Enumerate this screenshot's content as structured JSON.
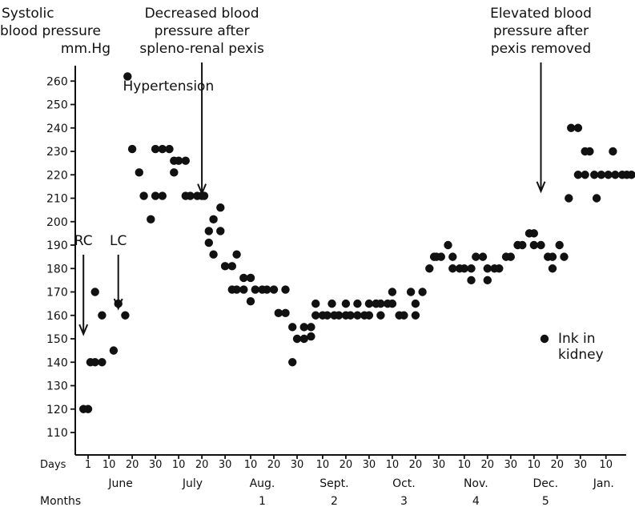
{
  "chart_data": {
    "type": "scatter",
    "ylabel_lines": [
      "Systolic",
      "blood pressure",
      "mm.Hg"
    ],
    "y_ticks": [
      110,
      120,
      130,
      140,
      150,
      160,
      170,
      180,
      190,
      200,
      210,
      220,
      230,
      240,
      250,
      260
    ],
    "ylim": [
      100,
      265
    ],
    "xlim": [
      -3,
      227
    ],
    "days_label": "Days",
    "months_label": "Months",
    "day_ticks": [
      {
        "label": "1",
        "day": 0
      },
      {
        "label": "10",
        "day": 9
      },
      {
        "label": "20",
        "day": 19
      },
      {
        "label": "30",
        "day": 29
      },
      {
        "label": "10",
        "day": 39
      },
      {
        "label": "20",
        "day": 49
      },
      {
        "label": "30",
        "day": 59
      },
      {
        "label": "10",
        "day": 70
      },
      {
        "label": "20",
        "day": 80
      },
      {
        "label": "30",
        "day": 90
      },
      {
        "label": "10",
        "day": 101
      },
      {
        "label": "20",
        "day": 111
      },
      {
        "label": "30",
        "day": 121
      },
      {
        "label": "10",
        "day": 131
      },
      {
        "label": "20",
        "day": 141
      },
      {
        "label": "30",
        "day": 151
      },
      {
        "label": "10",
        "day": 162
      },
      {
        "label": "20",
        "day": 172
      },
      {
        "label": "30",
        "day": 182
      },
      {
        "label": "10",
        "day": 192
      },
      {
        "label": "20",
        "day": 202
      },
      {
        "label": "30",
        "day": 212
      },
      {
        "label": "10",
        "day": 223
      }
    ],
    "month_names": [
      {
        "label": "June",
        "day": 14
      },
      {
        "label": "July",
        "day": 45
      },
      {
        "label": "Aug.",
        "day": 75
      },
      {
        "label": "Sept.",
        "day": 106
      },
      {
        "label": "Oct.",
        "day": 136
      },
      {
        "label": "Nov.",
        "day": 167
      },
      {
        "label": "Dec.",
        "day": 197
      },
      {
        "label": "Jan.",
        "day": 222
      }
    ],
    "month_numbers": [
      {
        "label": "1",
        "day": 75
      },
      {
        "label": "2",
        "day": 106
      },
      {
        "label": "3",
        "day": 136
      },
      {
        "label": "4",
        "day": 167
      },
      {
        "label": "5",
        "day": 197
      }
    ],
    "annotations": [
      {
        "id": "rc",
        "lines": [
          "RC"
        ],
        "day": -2,
        "value": 190,
        "arrow": true,
        "arrow_to": 152
      },
      {
        "id": "lc",
        "lines": [
          "LC"
        ],
        "day": 13,
        "value": 190,
        "arrow": true,
        "arrow_to": 163
      },
      {
        "id": "hypertension",
        "lines": [
          "Hypertension"
        ],
        "day": 15,
        "value": 256,
        "arrow": false
      },
      {
        "id": "decreased",
        "lines": [
          "Decreased blood",
          "pressure after",
          "spleno-renal pexis"
        ],
        "day": 49,
        "value": 295,
        "arrow": true,
        "arrow_to": 212
      },
      {
        "id": "elevated",
        "lines": [
          "Elevated blood",
          "pressure after",
          "pexis removed"
        ],
        "day": 195,
        "value": 295,
        "arrow": true,
        "arrow_to": 213
      }
    ],
    "legend": {
      "label_lines": [
        "Ink in",
        "kidney"
      ],
      "position": "right"
    },
    "points": [
      [
        -2,
        120
      ],
      [
        0,
        120
      ],
      [
        1,
        140
      ],
      [
        3,
        140
      ],
      [
        3,
        170
      ],
      [
        6,
        140
      ],
      [
        6,
        160
      ],
      [
        11,
        145
      ],
      [
        13,
        165
      ],
      [
        16,
        160
      ],
      [
        17,
        262
      ],
      [
        19,
        231
      ],
      [
        22,
        221
      ],
      [
        24,
        211
      ],
      [
        27,
        201
      ],
      [
        29,
        211
      ],
      [
        29,
        231
      ],
      [
        32,
        211
      ],
      [
        32,
        231
      ],
      [
        35,
        231
      ],
      [
        37,
        226
      ],
      [
        37,
        221
      ],
      [
        39,
        226
      ],
      [
        42,
        226
      ],
      [
        42,
        211
      ],
      [
        44,
        211
      ],
      [
        47,
        211
      ],
      [
        49,
        211
      ],
      [
        50,
        211
      ],
      [
        52,
        196
      ],
      [
        52,
        191
      ],
      [
        54,
        201
      ],
      [
        54,
        186
      ],
      [
        57,
        206
      ],
      [
        57,
        196
      ],
      [
        59,
        181
      ],
      [
        62,
        181
      ],
      [
        62,
        171
      ],
      [
        64,
        186
      ],
      [
        64,
        171
      ],
      [
        67,
        176
      ],
      [
        67,
        171
      ],
      [
        70,
        166
      ],
      [
        70,
        176
      ],
      [
        72,
        171
      ],
      [
        75,
        171
      ],
      [
        77,
        171
      ],
      [
        80,
        171
      ],
      [
        82,
        161
      ],
      [
        85,
        171
      ],
      [
        85,
        161
      ],
      [
        88,
        155
      ],
      [
        88,
        140
      ],
      [
        90,
        150
      ],
      [
        93,
        155
      ],
      [
        93,
        150
      ],
      [
        96,
        151
      ],
      [
        96,
        155
      ],
      [
        98,
        160
      ],
      [
        98,
        165
      ],
      [
        101,
        160
      ],
      [
        103,
        160
      ],
      [
        105,
        165
      ],
      [
        106,
        160
      ],
      [
        108,
        160
      ],
      [
        111,
        165
      ],
      [
        111,
        160
      ],
      [
        113,
        160
      ],
      [
        116,
        165
      ],
      [
        116,
        160
      ],
      [
        119,
        160
      ],
      [
        121,
        165
      ],
      [
        121,
        160
      ],
      [
        124,
        165
      ],
      [
        124,
        165
      ],
      [
        126,
        165
      ],
      [
        126,
        160
      ],
      [
        129,
        165
      ],
      [
        131,
        170
      ],
      [
        131,
        165
      ],
      [
        134,
        160
      ],
      [
        136,
        160
      ],
      [
        139,
        170
      ],
      [
        141,
        165
      ],
      [
        141,
        160
      ],
      [
        144,
        170
      ],
      [
        147,
        180
      ],
      [
        149,
        185
      ],
      [
        150,
        185
      ],
      [
        152,
        185
      ],
      [
        155,
        190
      ],
      [
        157,
        185
      ],
      [
        157,
        180
      ],
      [
        160,
        180
      ],
      [
        162,
        180
      ],
      [
        165,
        175
      ],
      [
        165,
        180
      ],
      [
        167,
        185
      ],
      [
        170,
        185
      ],
      [
        172,
        175
      ],
      [
        172,
        180
      ],
      [
        175,
        180
      ],
      [
        177,
        180
      ],
      [
        180,
        185
      ],
      [
        182,
        185
      ],
      [
        185,
        190
      ],
      [
        187,
        190
      ],
      [
        190,
        195
      ],
      [
        192,
        195
      ],
      [
        192,
        190
      ],
      [
        195,
        190
      ],
      [
        198,
        185
      ],
      [
        200,
        180
      ],
      [
        200,
        185
      ],
      [
        203,
        190
      ],
      [
        205,
        185
      ],
      [
        207,
        210
      ],
      [
        208,
        240
      ],
      [
        211,
        240
      ],
      [
        211,
        220
      ],
      [
        214,
        220
      ],
      [
        214,
        230
      ],
      [
        216,
        230
      ],
      [
        218,
        220
      ],
      [
        219,
        210
      ],
      [
        221,
        220
      ],
      [
        224,
        220
      ],
      [
        226,
        230
      ],
      [
        227,
        220
      ],
      [
        230,
        220
      ],
      [
        232,
        220
      ],
      [
        234,
        220
      ]
    ]
  }
}
